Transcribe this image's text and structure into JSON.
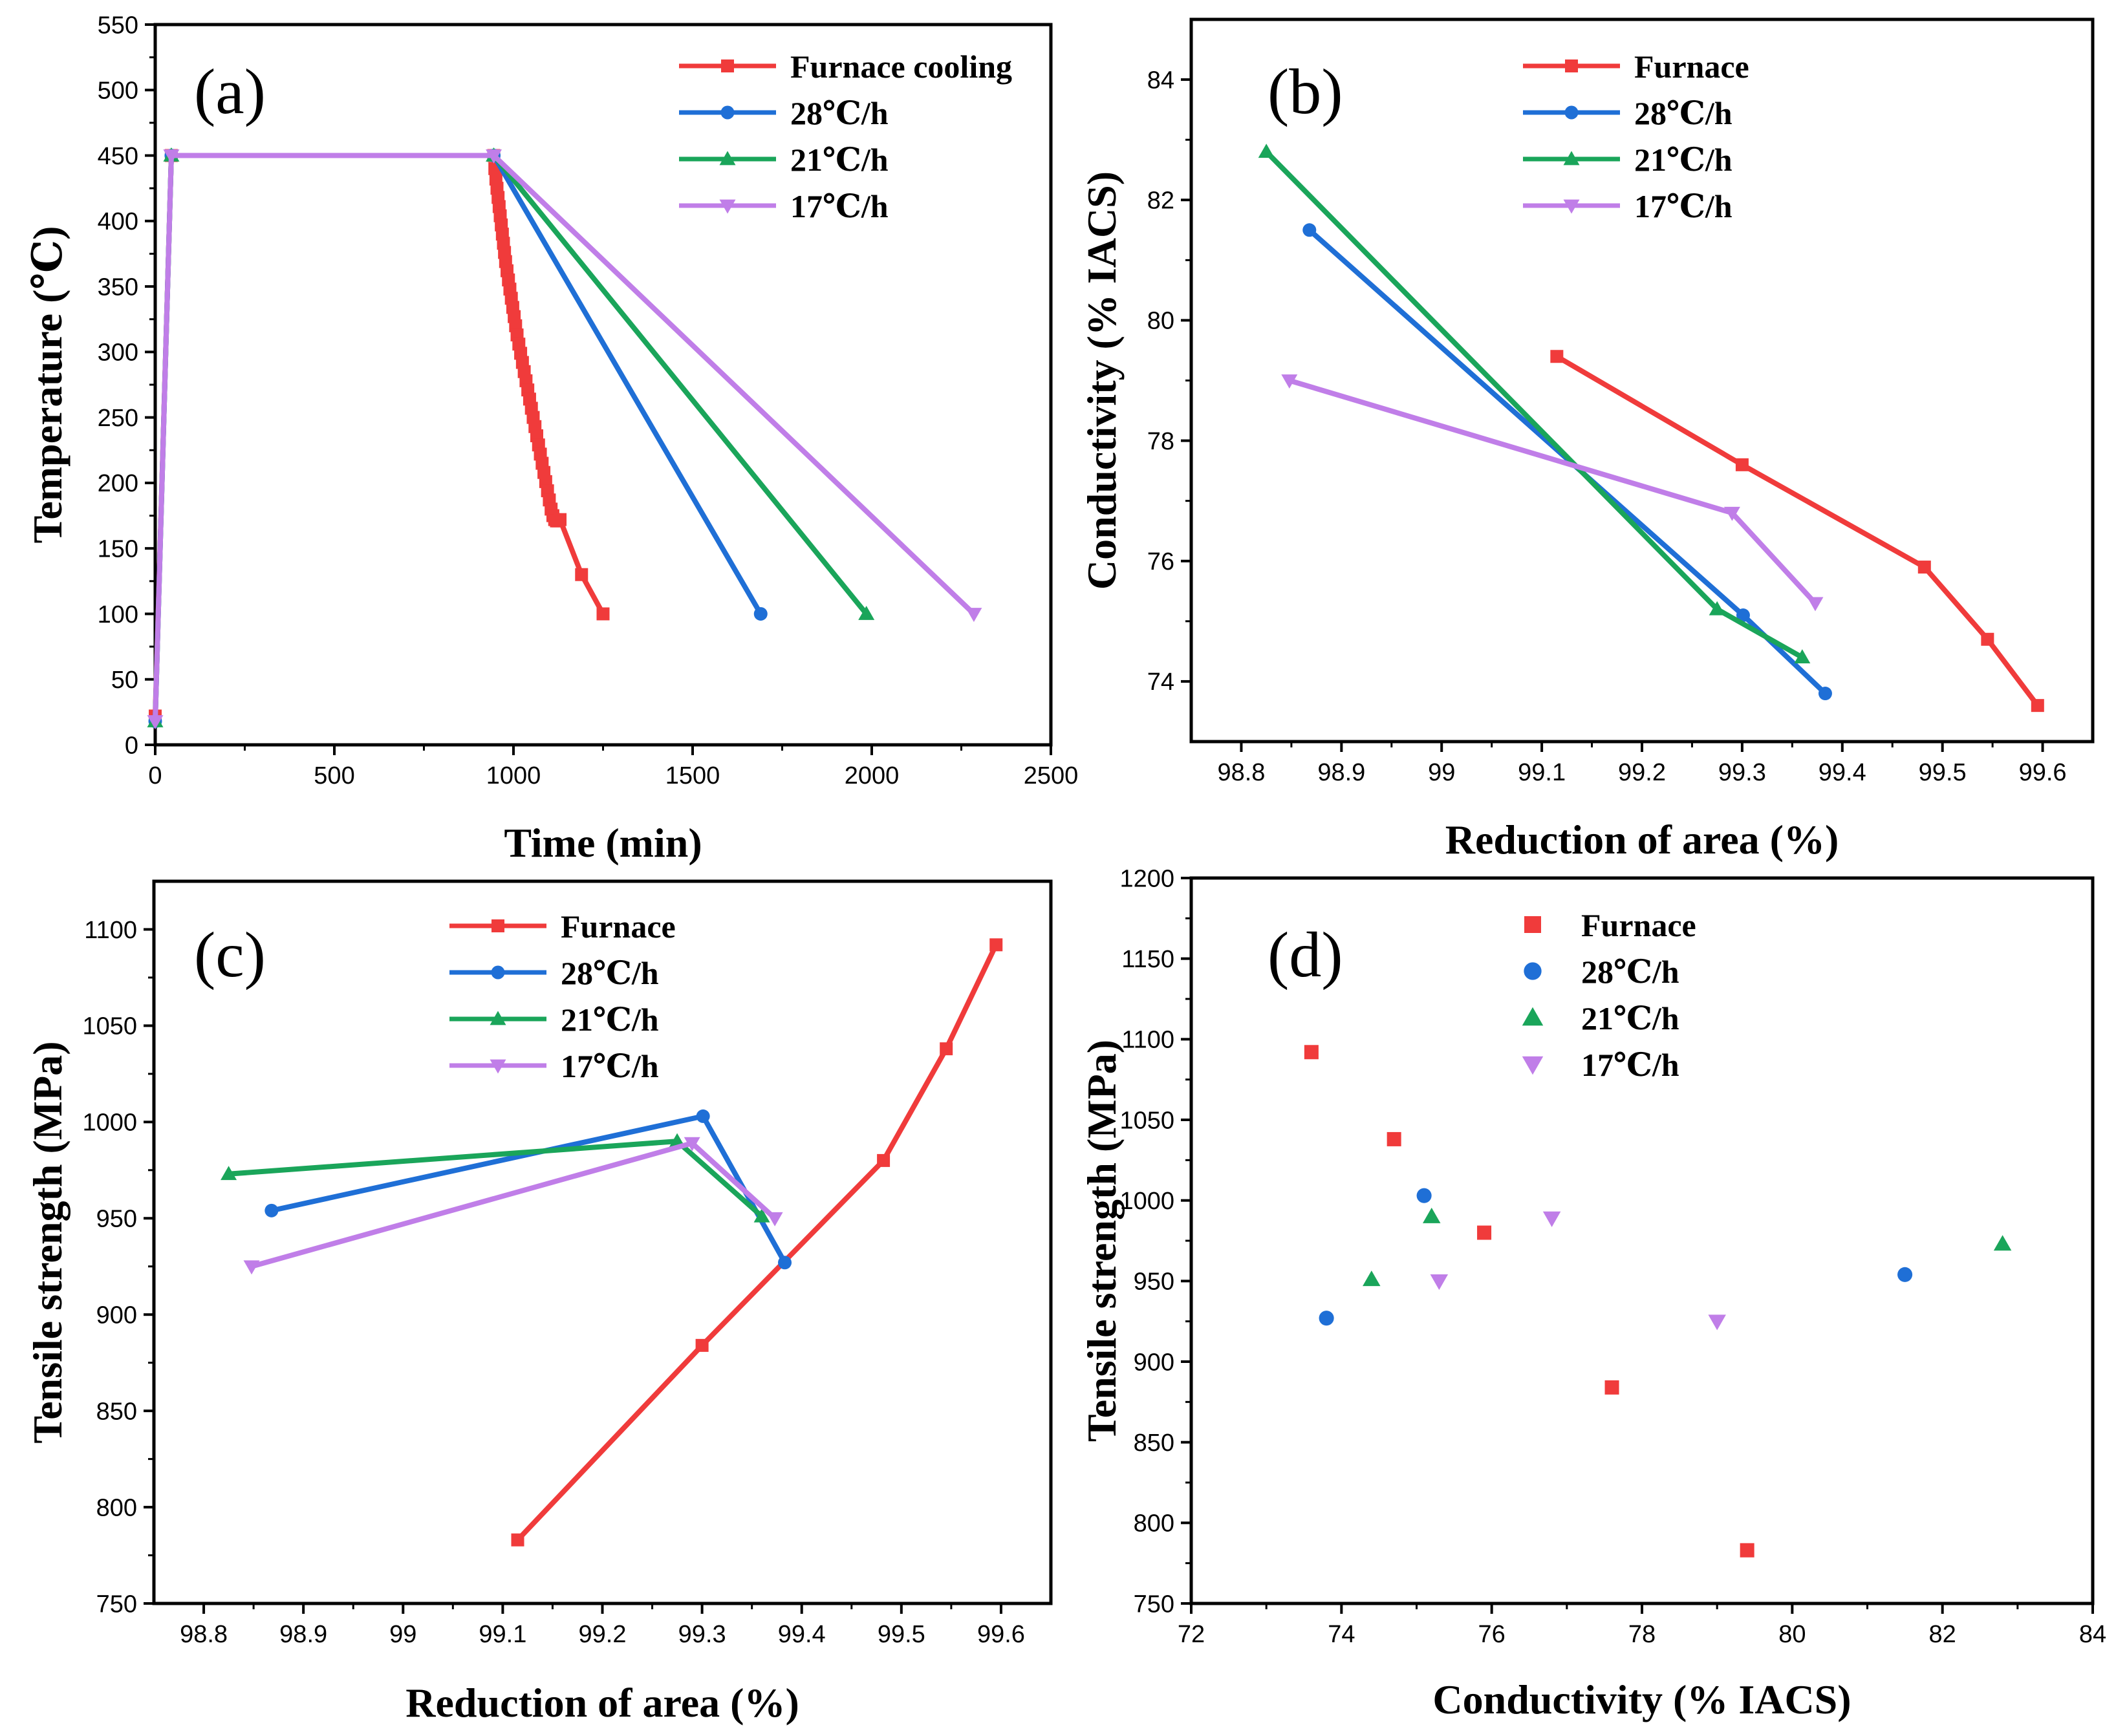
{
  "chart_data": [
    {
      "type": "line",
      "panel_label": "(a)",
      "xlabel": "Time (min)",
      "ylabel": "Temperature (℃)",
      "xlim": [
        0,
        2500
      ],
      "ylim": [
        0,
        550
      ],
      "xticks": [
        0,
        500,
        1000,
        1500,
        2000,
        2500
      ],
      "yticks": [
        0,
        50,
        100,
        150,
        200,
        250,
        300,
        350,
        400,
        450,
        500,
        550
      ],
      "legend_position": "top-right",
      "series": [
        {
          "name": "Furnace cooling",
          "color": "#f03b3b",
          "marker": "square",
          "x": [
            0,
            45,
            945,
            948,
            951,
            954,
            957,
            960,
            963,
            966,
            969,
            972,
            975,
            978,
            982,
            986,
            990,
            994,
            998,
            1002,
            1006,
            1010,
            1015,
            1020,
            1025,
            1030,
            1035,
            1040,
            1045,
            1050,
            1055,
            1060,
            1065,
            1070,
            1075,
            1080,
            1085,
            1090,
            1095,
            1100,
            1105,
            1110,
            1115,
            1120,
            1125,
            1130,
            1190,
            1250
          ],
          "y": [
            22,
            450,
            450,
            440,
            432,
            425,
            418,
            411,
            404,
            397,
            390,
            383,
            376,
            369,
            362,
            355,
            348,
            341,
            334,
            327,
            320,
            313,
            306,
            299,
            292,
            285,
            278,
            271,
            264,
            257,
            250,
            243,
            236,
            229,
            222,
            215,
            208,
            201,
            194,
            187,
            180,
            175,
            172,
            171,
            171,
            172,
            130,
            100
          ]
        },
        {
          "name": "28℃/h",
          "color": "#1f6fd6",
          "marker": "circle",
          "x": [
            0,
            45,
            945,
            1690
          ],
          "y": [
            18,
            450,
            450,
            100
          ]
        },
        {
          "name": "21℃/h",
          "color": "#1aa55a",
          "marker": "triangle-up",
          "x": [
            0,
            45,
            945,
            1985
          ],
          "y": [
            18,
            450,
            450,
            100
          ]
        },
        {
          "name": "17℃/h",
          "color": "#c07ee8",
          "marker": "triangle-down",
          "x": [
            0,
            45,
            945,
            2285
          ],
          "y": [
            18,
            450,
            450,
            100
          ]
        }
      ]
    },
    {
      "type": "line",
      "panel_label": "(b)",
      "xlabel": "Reduction of area (%)",
      "ylabel": "Conductivity (% IACS)",
      "xlim": [
        98.75,
        99.65
      ],
      "ylim": [
        73,
        85
      ],
      "xticks": [
        98.8,
        98.9,
        99.0,
        99.1,
        99.2,
        99.3,
        99.4,
        99.5,
        99.6
      ],
      "yticks": [
        74,
        76,
        78,
        80,
        82,
        84
      ],
      "legend_position": "top-left",
      "series": [
        {
          "name": "Furnace",
          "color": "#f03b3b",
          "marker": "square",
          "x": [
            99.115,
            99.3,
            99.482,
            99.545,
            99.595
          ],
          "y": [
            79.4,
            77.6,
            75.9,
            74.7,
            73.6
          ]
        },
        {
          "name": "28℃/h",
          "color": "#1f6fd6",
          "marker": "circle",
          "x": [
            98.868,
            99.301,
            99.383
          ],
          "y": [
            81.5,
            75.1,
            73.8
          ]
        },
        {
          "name": "21℃/h",
          "color": "#1aa55a",
          "marker": "triangle-up",
          "x": [
            98.825,
            99.275,
            99.36
          ],
          "y": [
            82.8,
            75.2,
            74.4
          ]
        },
        {
          "name": "17℃/h",
          "color": "#c07ee8",
          "marker": "triangle-down",
          "x": [
            98.848,
            99.29,
            99.373
          ],
          "y": [
            79.0,
            76.8,
            75.3
          ]
        }
      ]
    },
    {
      "type": "line",
      "panel_label": "(c)",
      "xlabel": "Reduction of area (%)",
      "ylabel": "Tensile strength (MPa)",
      "xlim": [
        98.75,
        99.65
      ],
      "ylim": [
        750,
        1125
      ],
      "xticks": [
        98.8,
        98.9,
        99.0,
        99.1,
        99.2,
        99.3,
        99.4,
        99.5,
        99.6
      ],
      "yticks": [
        750,
        800,
        850,
        900,
        950,
        1000,
        1050,
        1100
      ],
      "legend_position": "top-center",
      "series": [
        {
          "name": "Furnace",
          "color": "#f03b3b",
          "marker": "square",
          "x": [
            99.115,
            99.3,
            99.482,
            99.545,
            99.595
          ],
          "y": [
            783,
            884,
            980,
            1038,
            1092
          ]
        },
        {
          "name": "28℃/h",
          "color": "#1f6fd6",
          "marker": "circle",
          "x": [
            98.868,
            99.301,
            99.383
          ],
          "y": [
            954,
            1003,
            927
          ]
        },
        {
          "name": "21℃/h",
          "color": "#1aa55a",
          "marker": "triangle-up",
          "x": [
            98.825,
            99.275,
            99.36
          ],
          "y": [
            973,
            990,
            951
          ]
        },
        {
          "name": "17℃/h",
          "color": "#c07ee8",
          "marker": "triangle-down",
          "x": [
            98.848,
            99.29,
            99.373
          ],
          "y": [
            925,
            989,
            950
          ]
        }
      ]
    },
    {
      "type": "scatter",
      "panel_label": "(d)",
      "xlabel": "Conductivity (% IACS)",
      "ylabel": "Tensile strength (MPa)",
      "xlim": [
        72,
        84
      ],
      "ylim": [
        750,
        1200
      ],
      "xticks": [
        72,
        74,
        76,
        78,
        80,
        82,
        84
      ],
      "yticks": [
        750,
        800,
        850,
        900,
        950,
        1000,
        1050,
        1100,
        1150,
        1200
      ],
      "legend_position": "top-left",
      "series": [
        {
          "name": "Furnace",
          "color": "#f03b3b",
          "marker": "square",
          "x": [
            73.6,
            74.7,
            75.9,
            77.6,
            79.4
          ],
          "y": [
            1092,
            1038,
            980,
            884,
            783
          ]
        },
        {
          "name": "28℃/h",
          "color": "#1f6fd6",
          "marker": "circle",
          "x": [
            73.8,
            75.1,
            81.5
          ],
          "y": [
            927,
            1003,
            954
          ]
        },
        {
          "name": "21℃/h",
          "color": "#1aa55a",
          "marker": "triangle-up",
          "x": [
            74.4,
            75.2,
            82.8
          ],
          "y": [
            951,
            990,
            973
          ]
        },
        {
          "name": "17℃/h",
          "color": "#c07ee8",
          "marker": "triangle-down",
          "x": [
            75.3,
            76.8,
            79.0
          ],
          "y": [
            950,
            989,
            925
          ]
        }
      ]
    }
  ]
}
